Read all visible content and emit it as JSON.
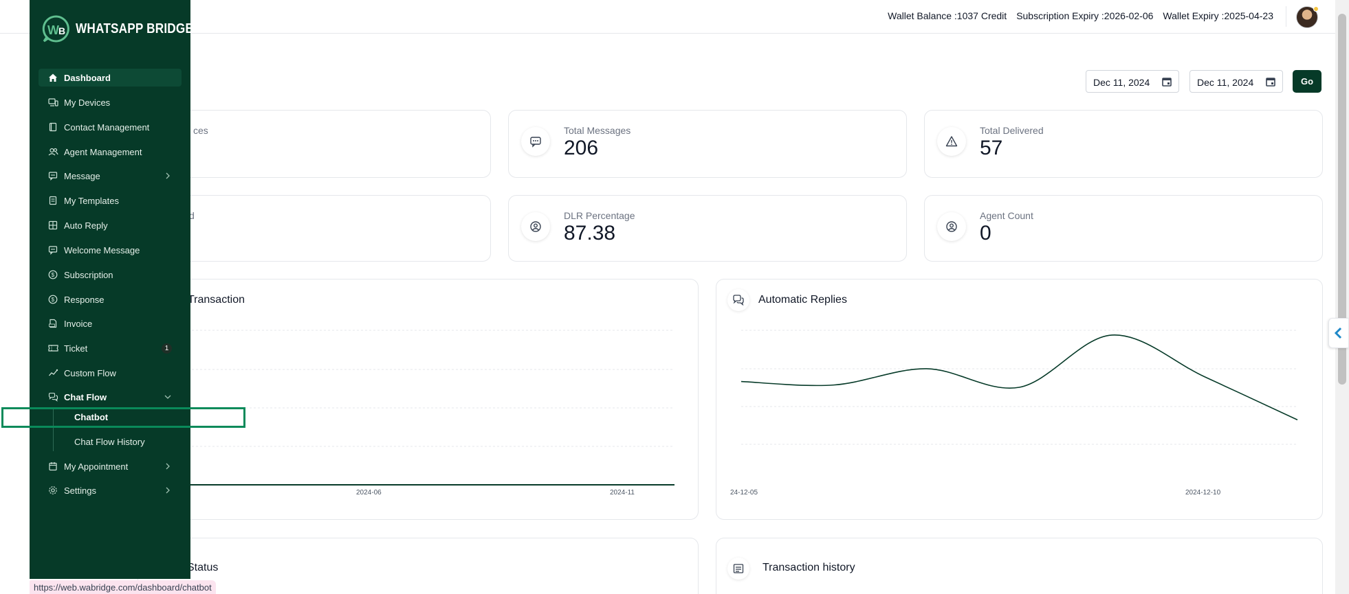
{
  "header": {
    "wallet_balance_label": "Wallet Balance :",
    "wallet_balance_value": "1037 Credit",
    "subscription_expiry_label": "Subscription Expiry :",
    "subscription_expiry_value": "2026-02-06",
    "wallet_expiry_label": "Wallet Expiry :",
    "wallet_expiry_value": "2025-04-23"
  },
  "filters": {
    "from_date": "Dec 11, 2024",
    "to_date": "Dec 11, 2024",
    "go_label": "Go"
  },
  "stats": [
    {
      "label": "ces",
      "value": ""
    },
    {
      "label": "Total Messages",
      "value": "206"
    },
    {
      "label": "Total Delivered",
      "value": "57"
    },
    {
      "label": "d",
      "value": ""
    },
    {
      "label": "DLR Percentage",
      "value": "87.38"
    },
    {
      "label": "Agent Count",
      "value": "0"
    }
  ],
  "panels": {
    "transaction_title": "Transaction",
    "automatic_replies_title": "Automatic Replies",
    "status_title": "Status",
    "transaction_history_title": "Transaction history"
  },
  "chart_data": [
    {
      "type": "line",
      "title": "Transaction",
      "x_ticks": [
        "2024-06",
        "2024-11"
      ],
      "series": [
        {
          "values": [
            0,
            0,
            0,
            0,
            0,
            0,
            0,
            0
          ]
        }
      ]
    },
    {
      "type": "line",
      "title": "Automatic Replies",
      "x": [
        "24-12-05",
        "24-12-06",
        "24-12-07",
        "24-12-08",
        "24-12-09",
        "2024-12-10",
        "24-12-11"
      ],
      "x_ticks": [
        "24-12-05",
        "2024-12-10"
      ],
      "series": [
        {
          "values": [
            60,
            57,
            71,
            55,
            100,
            64,
            27
          ]
        }
      ],
      "ylim": [
        0,
        110
      ],
      "grid": true
    }
  ],
  "sidebar": {
    "brand": "WHATSAPP BRIDGE",
    "items": [
      {
        "label": "Dashboard",
        "icon": "home-icon"
      },
      {
        "label": "My Devices",
        "icon": "devices-icon"
      },
      {
        "label": "Contact Management",
        "icon": "contact-book-icon"
      },
      {
        "label": "Agent Management",
        "icon": "users-icon"
      },
      {
        "label": "Message",
        "icon": "message-icon"
      },
      {
        "label": "My Templates",
        "icon": "template-icon"
      },
      {
        "label": "Auto Reply",
        "icon": "grid-icon"
      },
      {
        "label": "Welcome Message",
        "icon": "message-icon"
      },
      {
        "label": "Subscription",
        "icon": "dollar-icon"
      },
      {
        "label": "Response",
        "icon": "dollar-icon"
      },
      {
        "label": "Invoice",
        "icon": "pdf-icon"
      },
      {
        "label": "Ticket",
        "icon": "ticket-icon",
        "badge": "1"
      },
      {
        "label": "Custom Flow",
        "icon": "flow-icon"
      },
      {
        "label": "Chat Flow",
        "icon": "chat-icon"
      },
      {
        "label": "My Appointment",
        "icon": "calendar-icon"
      },
      {
        "label": "Settings",
        "icon": "gear-icon"
      }
    ],
    "chat_flow_sub": [
      "Chatbot",
      "Chat Flow History"
    ]
  },
  "status_bar": {
    "url": "https://web.wabridge.com/dashboard/chatbot"
  }
}
